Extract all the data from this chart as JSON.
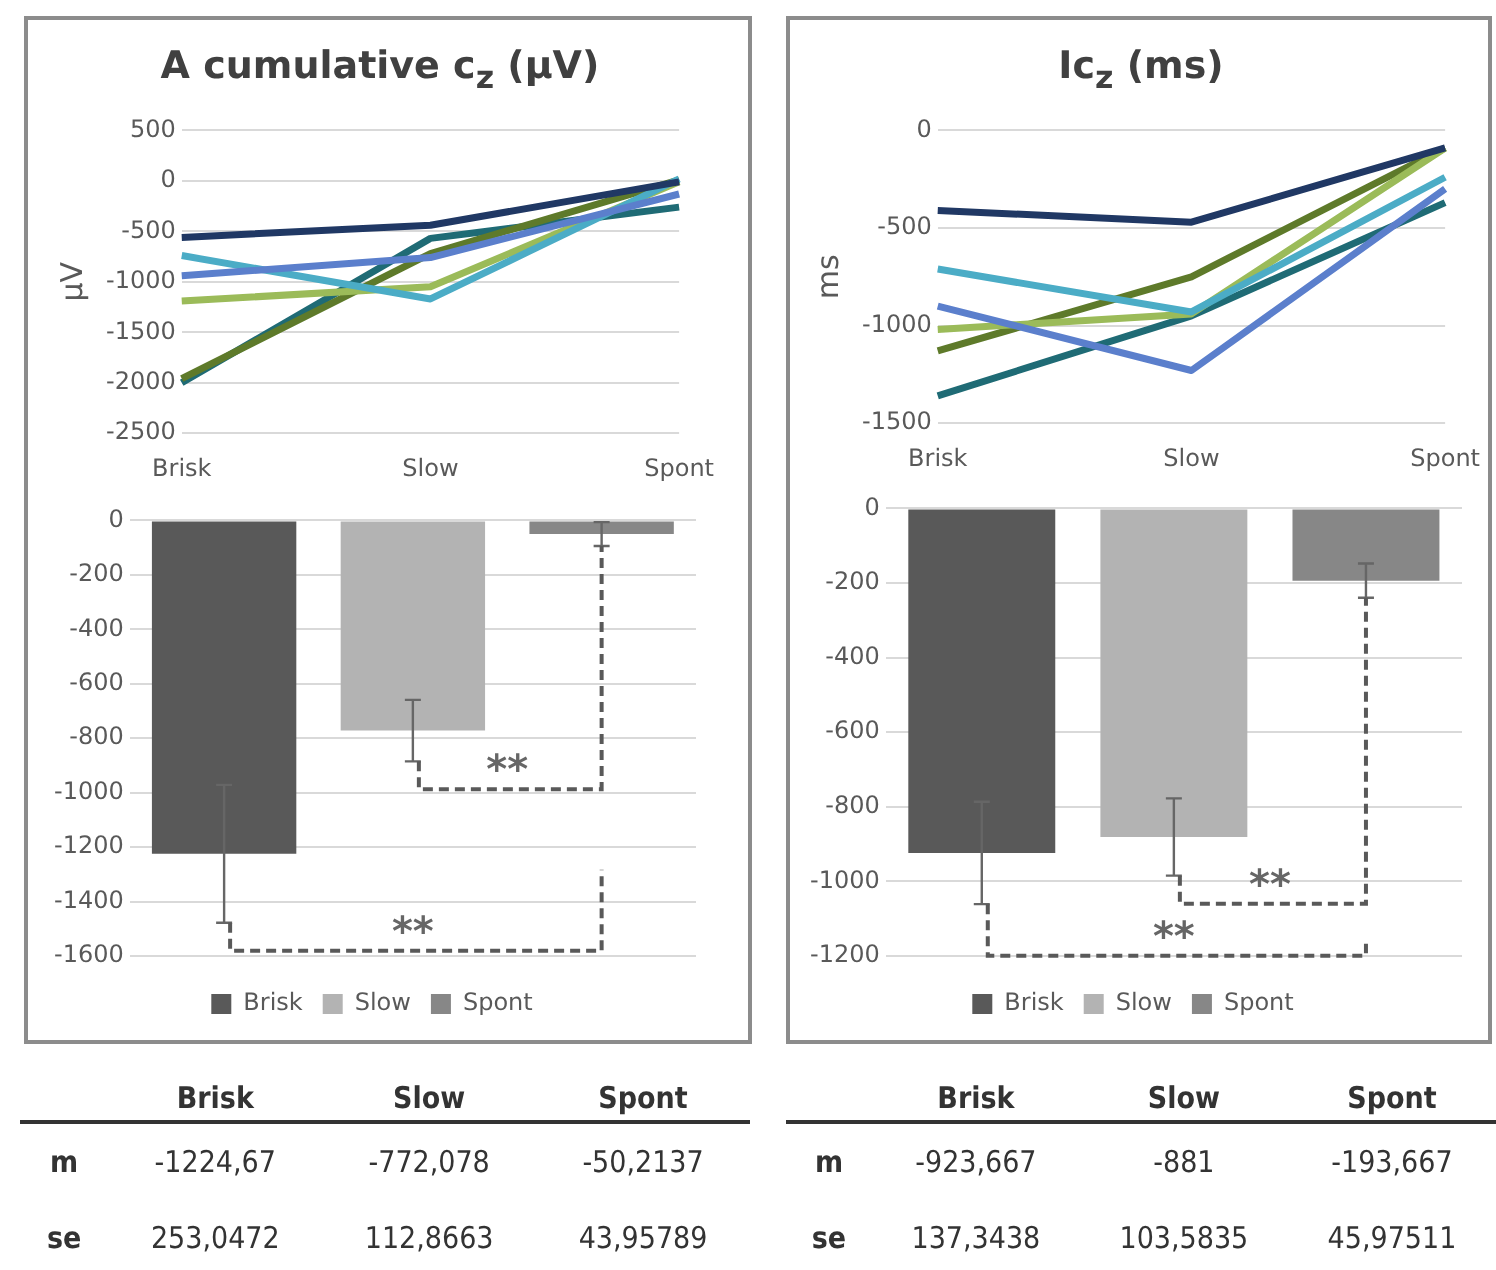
{
  "chart_data": [
    {
      "type": "line",
      "title": "A cumulative c$_{z}$ (µV)",
      "ylabel": "µV",
      "categories": [
        "Brisk",
        "Slow",
        "Spont"
      ],
      "series": [
        {
          "color": "#203864",
          "values": [
            -560,
            -440,
            -10
          ]
        },
        {
          "color": "#5b7fcc",
          "values": [
            -940,
            -760,
            -130
          ]
        },
        {
          "color": "#4bacc6",
          "values": [
            -740,
            -1170,
            20
          ]
        },
        {
          "color": "#9bbb59",
          "values": [
            -1190,
            -1050,
            -10
          ]
        },
        {
          "color": "#5e7a2a",
          "values": [
            -1960,
            -720,
            10
          ]
        },
        {
          "color": "#1f6b75",
          "values": [
            -2000,
            -570,
            -260
          ]
        }
      ],
      "ylim": [
        -2500,
        500
      ],
      "yticks": [
        -2500,
        -2000,
        -1500,
        -1000,
        -500,
        0,
        500
      ],
      "grid": "y",
      "legend": false,
      "marker": "none"
    },
    {
      "type": "line",
      "title": "Ic$_{z}$ (ms)",
      "ylabel": "ms",
      "categories": [
        "Brisk",
        "Slow",
        "Spont"
      ],
      "series": [
        {
          "color": "#203864",
          "values": [
            -410,
            -470,
            -90
          ]
        },
        {
          "color": "#4bacc6",
          "values": [
            -710,
            -930,
            -240
          ]
        },
        {
          "color": "#5b7fcc",
          "values": [
            -900,
            -1230,
            -300
          ]
        },
        {
          "color": "#9bbb59",
          "values": [
            -1020,
            -940,
            -90
          ]
        },
        {
          "color": "#5e7a2a",
          "values": [
            -1130,
            -750,
            -90
          ]
        },
        {
          "color": "#1f6b75",
          "values": [
            -1360,
            -950,
            -370
          ]
        }
      ],
      "ylim": [
        -1500,
        0
      ],
      "yticks": [
        -1500,
        -1000,
        -500,
        0
      ],
      "grid": "y",
      "legend": false,
      "marker": "none"
    },
    {
      "type": "bar",
      "categories": [
        "Brisk",
        "Slow",
        "Spont"
      ],
      "series": [
        {
          "name": "Brisk",
          "color": "#595959",
          "values": [
            -1224.67,
            null,
            null
          ],
          "errors": [
            253.0472,
            null,
            null
          ]
        },
        {
          "name": "Slow",
          "color": "#b3b3b3",
          "values": [
            null,
            -772.078,
            null
          ],
          "errors": [
            null,
            112.8663,
            null
          ]
        },
        {
          "name": "Spont",
          "color": "#878787",
          "values": [
            null,
            null,
            -50.2137
          ],
          "errors": [
            null,
            null,
            43.95789
          ]
        }
      ],
      "annotations": [
        "**",
        "**",
        "m",
        "-1224,67",
        "-772,078",
        "-50,2137",
        "se",
        "253,0472",
        "112,8663",
        "43,95789"
      ],
      "ylim": [
        -1600,
        0
      ],
      "yticks": [
        -1600,
        -1400,
        -1200,
        -1000,
        -800,
        -600,
        -400,
        -200,
        0
      ],
      "grid": "y",
      "legend": "bottom",
      "tick_labels": "y"
    },
    {
      "type": "bar",
      "categories": [
        "Brisk",
        "Slow",
        "Spont"
      ],
      "series": [
        {
          "name": "Brisk",
          "color": "#595959",
          "values": [
            -923.667,
            null,
            null
          ],
          "errors": [
            137.3438,
            null,
            null
          ]
        },
        {
          "name": "Slow",
          "color": "#b3b3b3",
          "values": [
            null,
            -881,
            null
          ],
          "errors": [
            null,
            103.5835,
            null
          ]
        },
        {
          "name": "Spont",
          "color": "#878787",
          "values": [
            null,
            null,
            -193.667
          ],
          "errors": [
            null,
            null,
            45.97511
          ]
        }
      ],
      "annotations": [
        "**",
        "**",
        "m",
        "-923,667",
        "-881",
        "-193,667",
        "se",
        "137,3438",
        "103,5835",
        "45,97511"
      ],
      "ylim": [
        -1200,
        0
      ],
      "yticks": [
        -1200,
        -1000,
        -800,
        -600,
        -400,
        -200,
        0
      ],
      "grid": "y",
      "legend": "bottom",
      "tick_labels": "y"
    }
  ]
}
